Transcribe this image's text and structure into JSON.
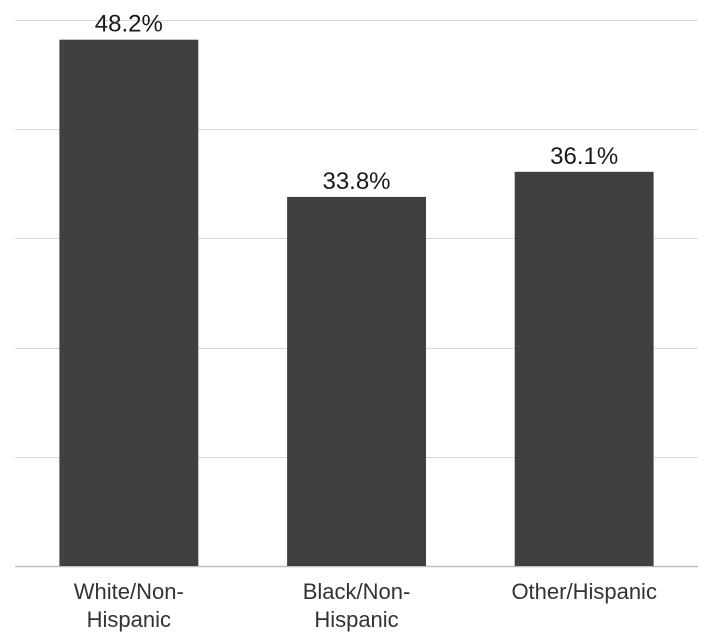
{
  "chart_data": {
    "type": "bar",
    "categories": [
      [
        "White/Non-",
        "Hispanic"
      ],
      [
        "Black/Non-",
        "Hispanic"
      ],
      [
        "Other/Hispanic"
      ]
    ],
    "values": [
      48.2,
      33.8,
      36.1
    ],
    "value_labels": [
      "48.2%",
      "33.8%",
      "36.1%"
    ],
    "unit": "%",
    "ylim": [
      0,
      50
    ],
    "grid": true,
    "bar_color": "#404040",
    "gridline_color": "#d9d9d9",
    "title": "",
    "xlabel": "",
    "ylabel": ""
  }
}
